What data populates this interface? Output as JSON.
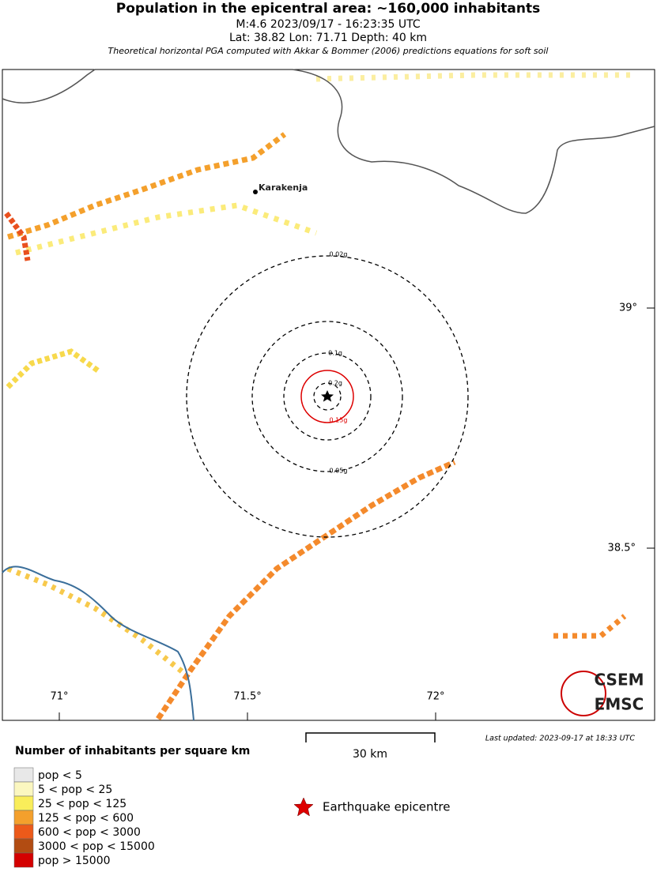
{
  "header": {
    "title": "Population in the epicentral area: ~160,000 inhabitants",
    "line1": "M:4.6 2023/09/17 - 16:23:35 UTC",
    "line2": "Lat: 38.82 Lon: 71.71 Depth: 40 km",
    "note": "Theoretical horizontal PGA computed with Akkar & Bommer (2006) predictions equations for soft soil"
  },
  "map": {
    "place": "Karakenja",
    "contours": [
      "0.02g",
      "0.1g",
      "0.2g",
      "0.15g",
      "0.05g"
    ],
    "lat_labels": [
      "39°",
      "38.5°"
    ],
    "lon_labels": [
      "71°",
      "71.5°",
      "72°"
    ]
  },
  "legend": {
    "title": "Number of inhabitants per square km",
    "items": [
      "pop < 5",
      "5 < pop < 25",
      "25 < pop < 125",
      "125 < pop < 600",
      "600 < pop < 3000",
      "3000 < pop < 15000",
      "pop > 15000"
    ]
  },
  "scale": "30 km",
  "epicentre": "Earthquake epicentre",
  "updated": "Last updated: 2023-09-17 at 18:33 UTC",
  "logo": [
    "CSEM",
    "EMSC"
  ]
}
